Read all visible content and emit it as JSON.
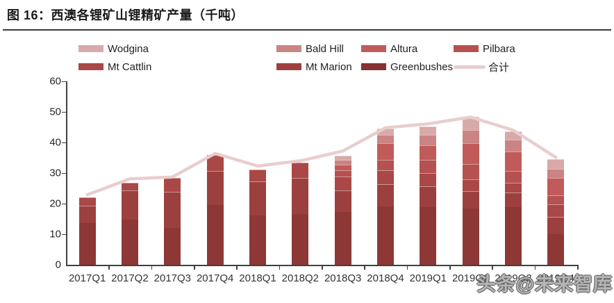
{
  "title": "图 16：西澳各锂矿山锂精矿产量（千吨）",
  "watermark": "头条@未来智库",
  "colors": {
    "axis": "#404040",
    "title_rule": "#3a3a3a",
    "total_line": "#e9cdcd"
  },
  "legend": {
    "items": [
      {
        "label": "Wodgina",
        "type": "box",
        "color": "#d8a9a9"
      },
      {
        "label": "Bald Hill",
        "type": "box",
        "color": "#ca8484"
      },
      {
        "label": "Altura",
        "type": "box",
        "color": "#c05b59"
      },
      {
        "label": "Pilbara",
        "type": "box",
        "color": "#b55150"
      },
      {
        "label": "Mt Cattlin",
        "type": "box",
        "color": "#a94846"
      },
      {
        "label": "Mt Marion",
        "type": "box",
        "color": "#9c403f"
      },
      {
        "label": "Greenbushes",
        "type": "box",
        "color": "#853231"
      },
      {
        "label": "合计",
        "type": "line",
        "color": "#e9cdcd"
      }
    ]
  },
  "chart_data": {
    "type": "bar",
    "stacked": true,
    "title": "西澳各锂矿山锂精矿产量（千吨）",
    "xlabel": "",
    "ylabel": "",
    "ylim": [
      0,
      60
    ],
    "yticks": [
      0,
      10,
      20,
      30,
      40,
      50,
      60
    ],
    "grid": false,
    "legend_position": "top",
    "categories": [
      "2017Q1",
      "2017Q2",
      "2017Q3",
      "2017Q4",
      "2018Q1",
      "2018Q2",
      "2018Q3",
      "2018Q4",
      "2019Q1",
      "2019Q2",
      "2019Q3",
      "2019Q4"
    ],
    "series": [
      {
        "name": "Greenbushes",
        "color": "#8d3836",
        "values": [
          13.7,
          14.8,
          12.0,
          19.6,
          16.2,
          16.6,
          17.3,
          19.2,
          18.9,
          18.5,
          18.9,
          10.1
        ]
      },
      {
        "name": "Mt Marion",
        "color": "#9c403f",
        "values": [
          5.7,
          9.6,
          11.8,
          11.0,
          11.0,
          11.8,
          7.0,
          7.2,
          6.7,
          5.7,
          4.8,
          5.6
        ]
      },
      {
        "name": "Mt Cattlin",
        "color": "#a94846",
        "values": [
          2.6,
          2.4,
          4.6,
          5.4,
          4.0,
          5.1,
          4.6,
          4.6,
          4.4,
          3.8,
          3.2,
          4.0
        ]
      },
      {
        "name": "Pilbara",
        "color": "#b55150",
        "values": [
          0,
          0,
          0,
          0,
          0,
          0,
          2.1,
          3.4,
          4.4,
          4.9,
          3.7,
          3.0
        ]
      },
      {
        "name": "Altura",
        "color": "#c05b59",
        "values": [
          0,
          0,
          0,
          0,
          0,
          0,
          1.7,
          5.4,
          4.8,
          6.9,
          6.5,
          5.7
        ]
      },
      {
        "name": "Bald Hill",
        "color": "#ca8484",
        "values": [
          0,
          0,
          0,
          0,
          0,
          0,
          1.7,
          2.6,
          3.2,
          4.2,
          3.8,
          3.0
        ]
      },
      {
        "name": "Wodgina",
        "color": "#d8a9a9",
        "values": [
          0,
          0,
          0,
          0,
          0,
          0,
          1.3,
          2.1,
          2.9,
          4.3,
          2.8,
          3.2
        ]
      }
    ],
    "line_series": {
      "name": "合计",
      "color": "#e9cdcd",
      "values": [
        22.9,
        28.1,
        28.7,
        36.4,
        32.3,
        34.0,
        37.2,
        44.8,
        46.1,
        48.3,
        44.0,
        35.1
      ]
    }
  }
}
